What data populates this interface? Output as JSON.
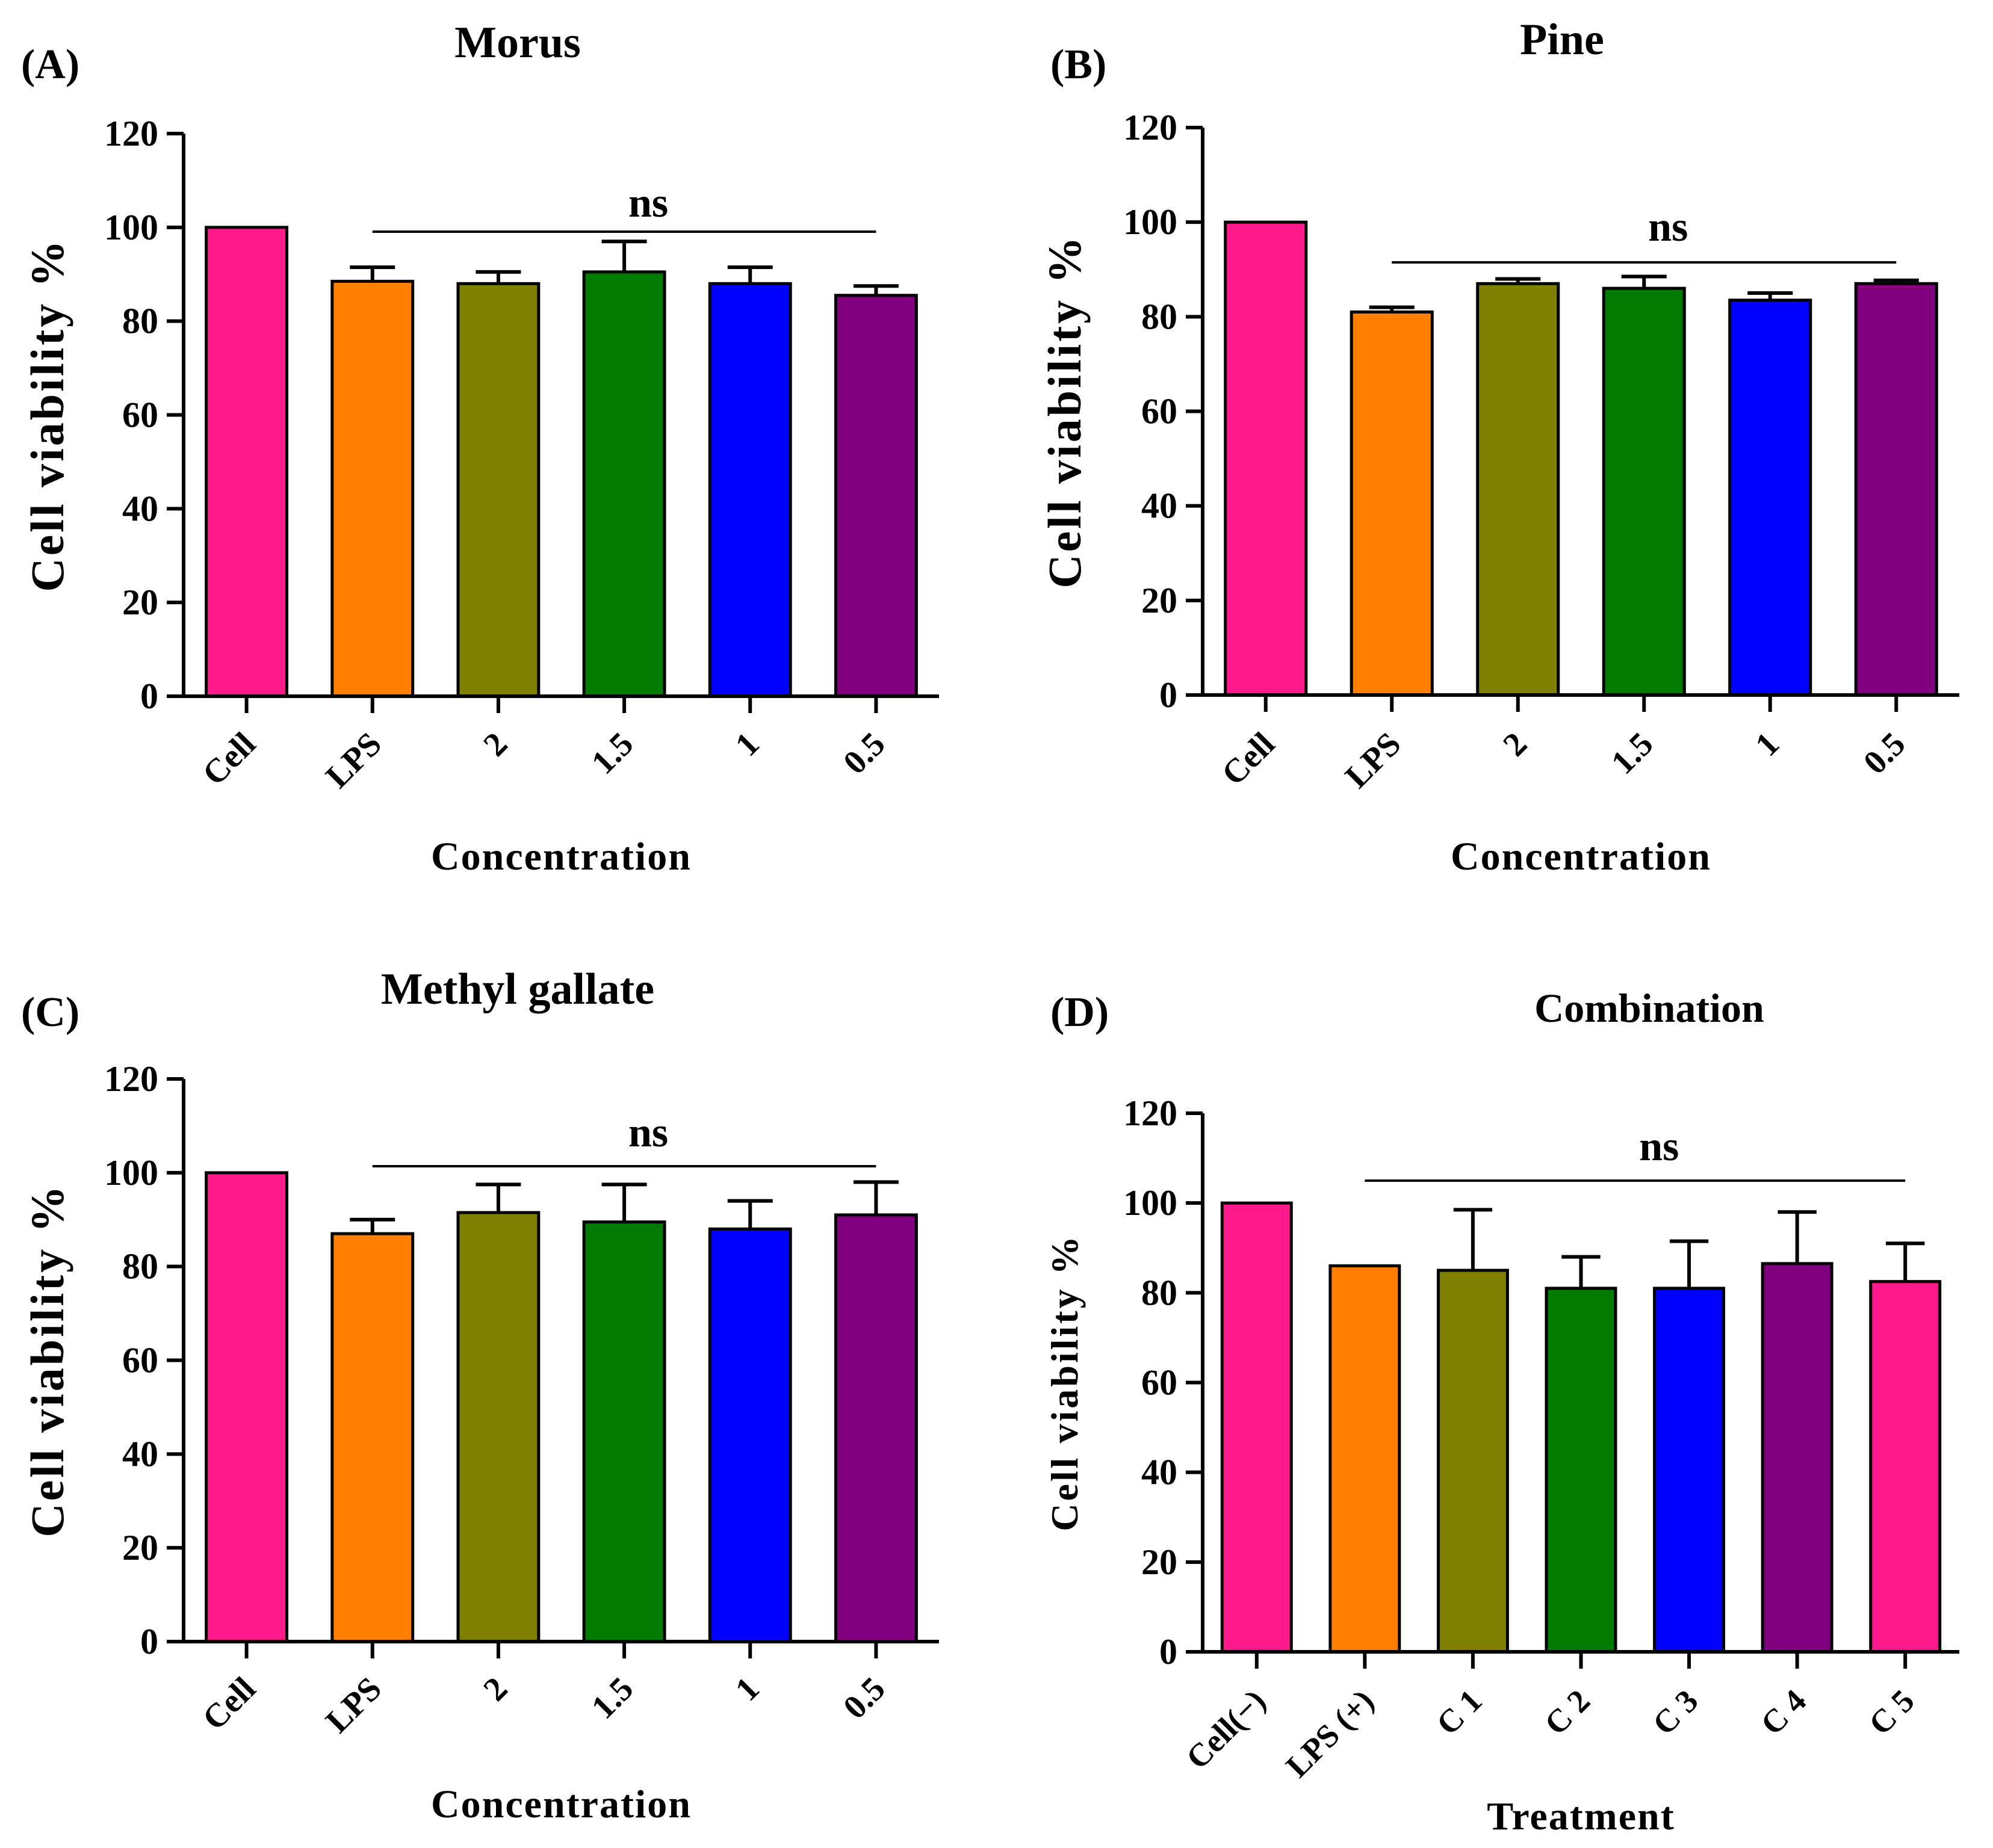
{
  "chart_data": [
    {
      "panel_label": "(A)",
      "type": "bar",
      "title": "Morus",
      "xlabel": "Concentration",
      "ylabel": "Cell viability %",
      "ylim": [
        0,
        120
      ],
      "yticks": [
        0,
        20,
        40,
        60,
        80,
        100,
        120
      ],
      "categories": [
        "Cell",
        "LPS",
        "2",
        "1.5",
        "1",
        "0.5"
      ],
      "values": [
        100,
        88.5,
        88,
        90.5,
        88,
        85.5
      ],
      "errors": [
        0,
        3,
        2.5,
        6.5,
        3.5,
        2
      ],
      "colors": [
        "#ff1a8c",
        "#ff7f00",
        "#808000",
        "#007a00",
        "#0000ff",
        "#800080"
      ],
      "annotation": "ns",
      "annotation_span": [
        "LPS",
        "0.5"
      ]
    },
    {
      "panel_label": "(B)",
      "type": "bar",
      "title": "Pine",
      "xlabel": "Concentration",
      "ylabel": "Cell viability %",
      "ylim": [
        0,
        120
      ],
      "yticks": [
        0,
        20,
        40,
        60,
        80,
        100,
        120
      ],
      "categories": [
        "Cell",
        "LPS",
        "2",
        "1.5",
        "1",
        "0.5"
      ],
      "values": [
        100,
        81,
        87,
        86,
        83.5,
        87
      ],
      "errors": [
        0,
        1,
        1,
        2.5,
        1.5,
        0.7
      ],
      "colors": [
        "#ff1a8c",
        "#ff7f00",
        "#808000",
        "#007a00",
        "#0000ff",
        "#800080"
      ],
      "annotation": "ns",
      "annotation_span": [
        "LPS",
        "0.5"
      ]
    },
    {
      "panel_label": "(C)",
      "type": "bar",
      "title": "Methyl gallate",
      "xlabel": "Concentration",
      "ylabel": "Cell viability %",
      "ylim": [
        0,
        120
      ],
      "yticks": [
        0,
        20,
        40,
        60,
        80,
        100,
        120
      ],
      "categories": [
        "Cell",
        "LPS",
        "2",
        "1.5",
        "1",
        "0.5"
      ],
      "values": [
        100,
        87,
        91.5,
        89.5,
        88,
        91
      ],
      "errors": [
        0,
        3,
        6,
        8,
        6,
        7
      ],
      "colors": [
        "#ff1a8c",
        "#ff7f00",
        "#808000",
        "#007a00",
        "#0000ff",
        "#800080"
      ],
      "annotation": "ns",
      "annotation_span": [
        "LPS",
        "0.5"
      ]
    },
    {
      "panel_label": "(D)",
      "type": "bar",
      "title": "Combination",
      "xlabel": "Treatment",
      "ylabel": "Cell viability %",
      "ylim": [
        0,
        120
      ],
      "yticks": [
        0,
        20,
        40,
        60,
        80,
        100,
        120
      ],
      "categories": [
        "Cell(−)",
        "LPS (+)",
        "C 1",
        "C 2",
        "C 3",
        "C 4",
        "C 5"
      ],
      "values": [
        100,
        86,
        85,
        81,
        81,
        86.5,
        82.5
      ],
      "errors": [
        0,
        0,
        13.5,
        7,
        10.5,
        11.5,
        8.5
      ],
      "colors": [
        "#ff1a8c",
        "#ff7f00",
        "#808000",
        "#007a00",
        "#0000ff",
        "#800080",
        "#ff1a8c"
      ],
      "annotation": "ns",
      "annotation_span": [
        "LPS (+)",
        "C 5"
      ]
    }
  ]
}
